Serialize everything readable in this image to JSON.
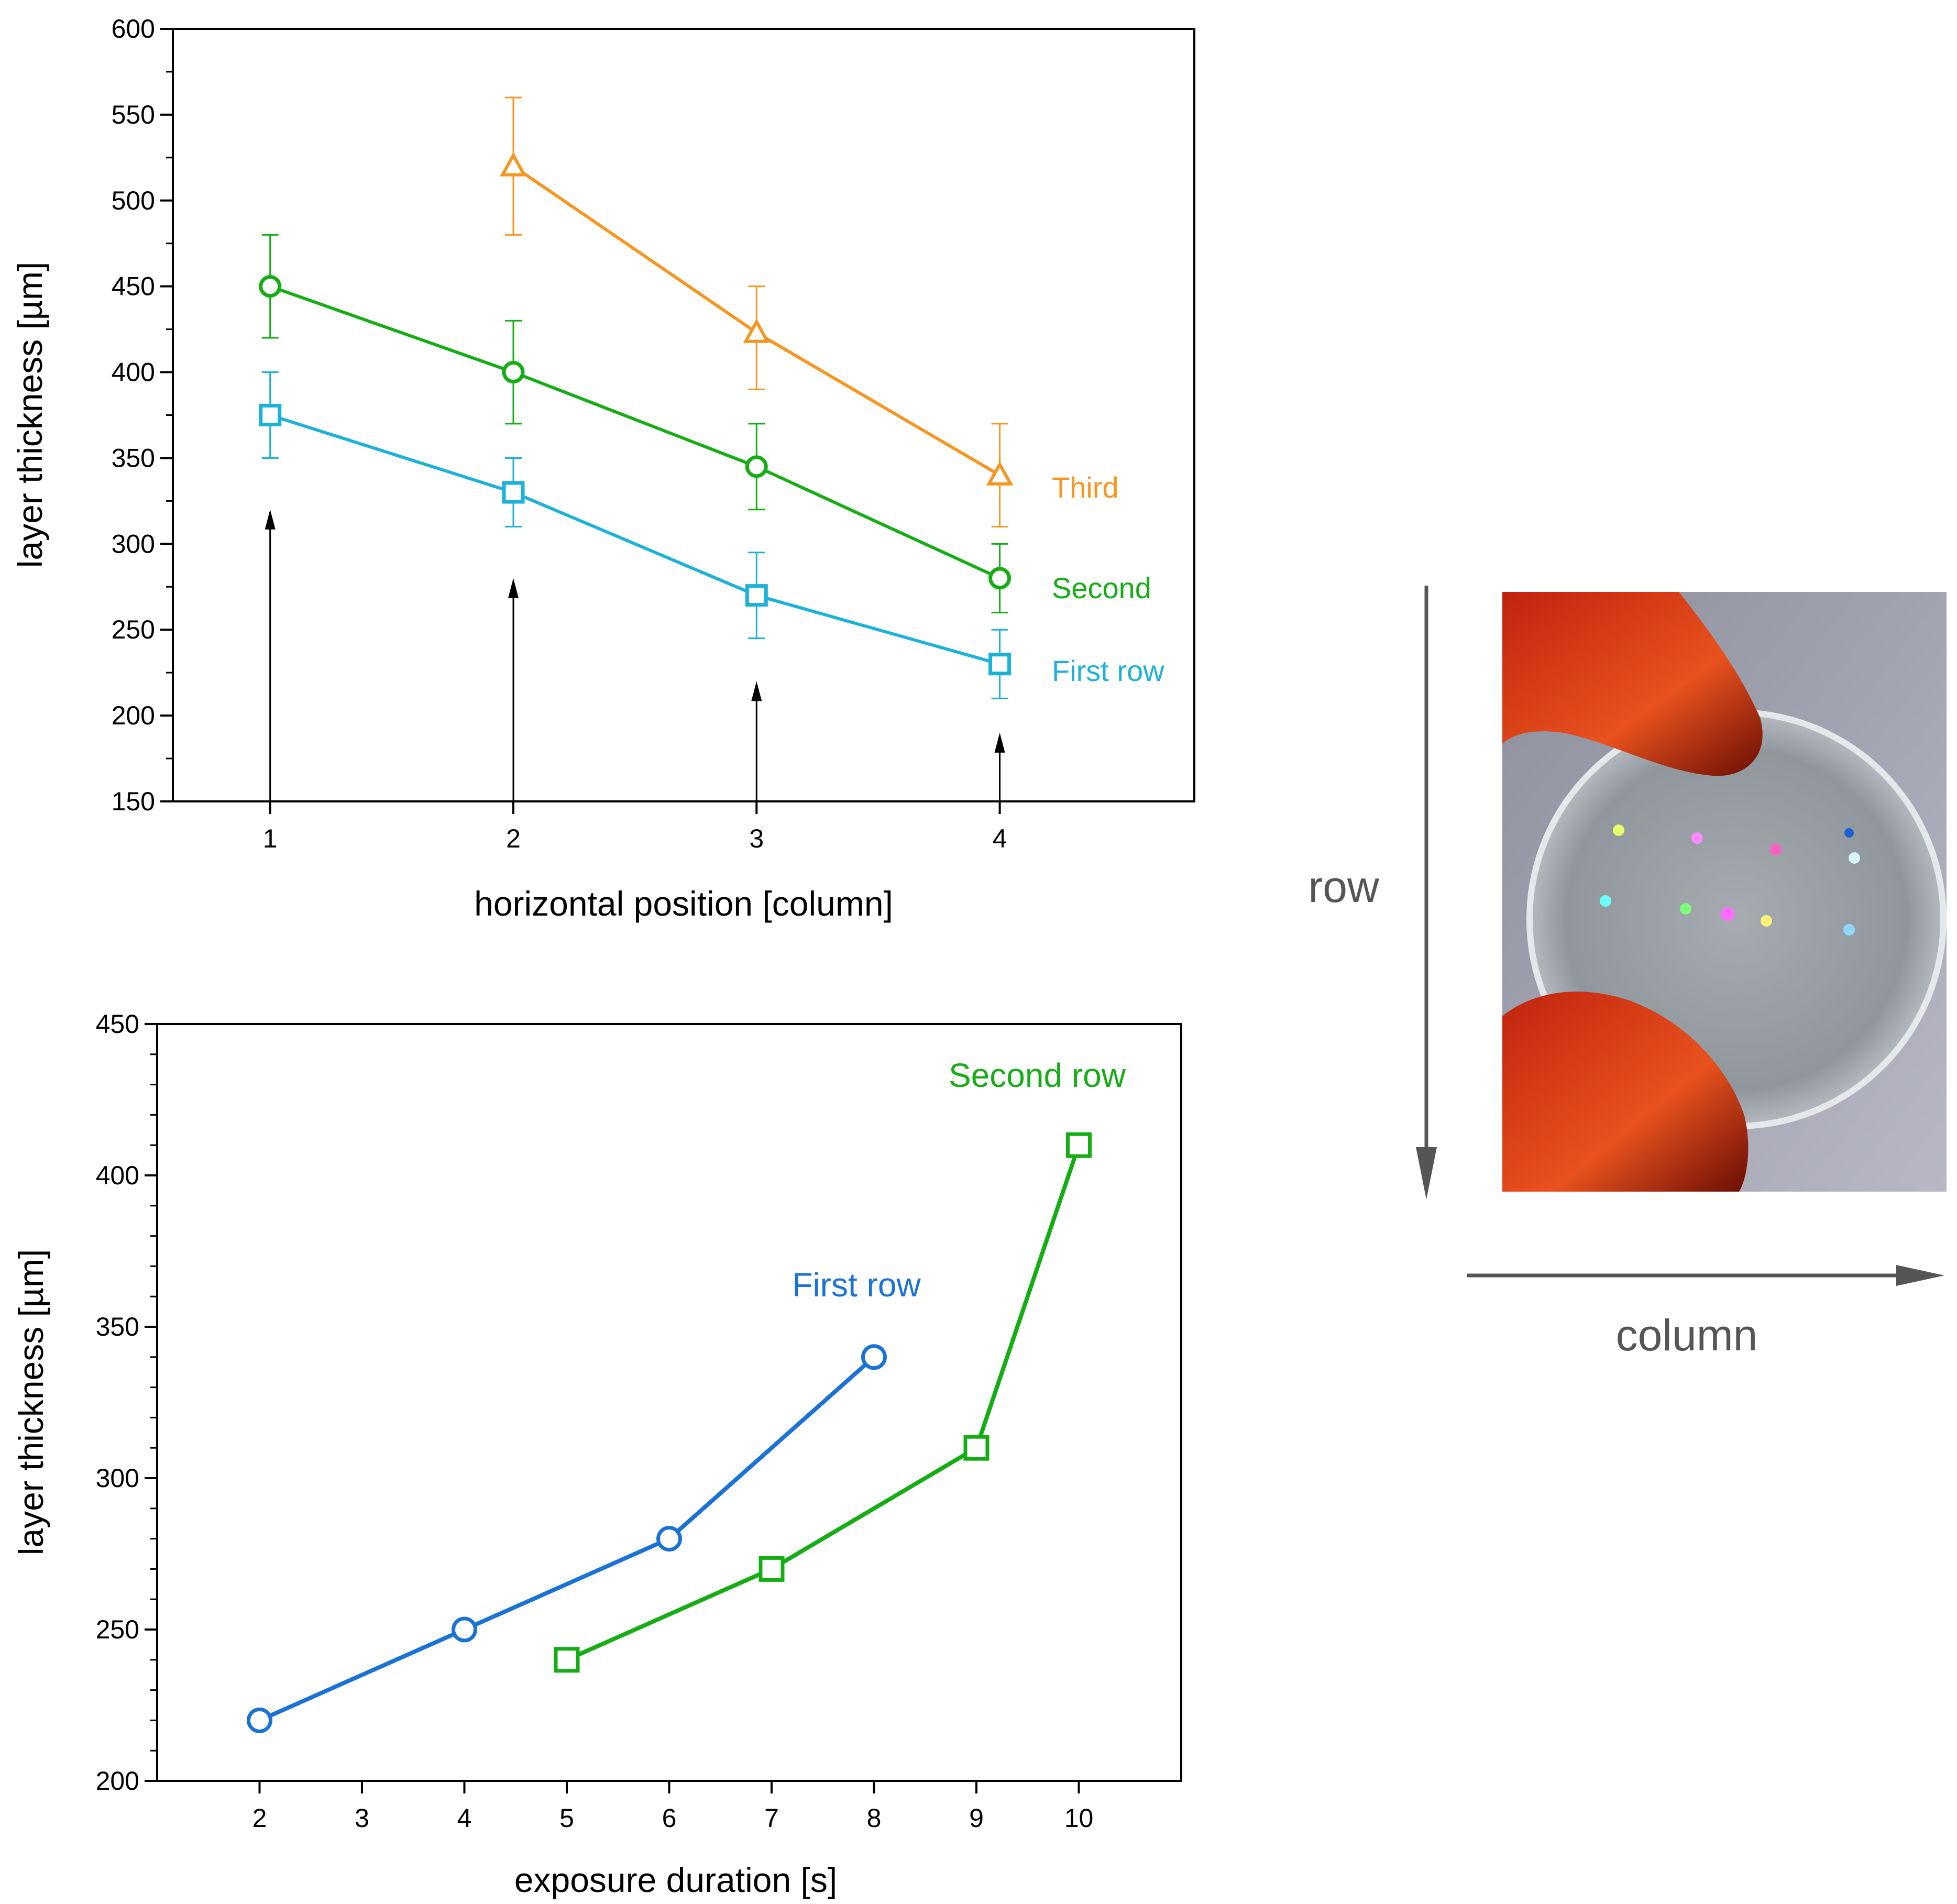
{
  "colors": {
    "first_row_top": "#1ab2d8",
    "second_top": "#14ad14",
    "third_top": "#f7951e",
    "first_row_bottom": "#1a72d6",
    "second_row_bottom": "#14ad14",
    "arrow": "#000000",
    "photo_arrow": "#555555"
  },
  "chart_data": [
    {
      "type": "line",
      "xlabel": "horizontal position [column]",
      "ylabel": "layer thickness [µm]",
      "xlim": [
        0.6,
        4.8
      ],
      "ylim": [
        150,
        600
      ],
      "xticks": [
        1,
        2,
        3,
        4
      ],
      "yticks": [
        150,
        200,
        250,
        300,
        350,
        400,
        450,
        500,
        550,
        600
      ],
      "legend_placement": "right",
      "series": [
        {
          "name": "First row",
          "marker": "square",
          "color_key": "first_row_top",
          "x": [
            1,
            2,
            3,
            4
          ],
          "y": [
            375,
            330,
            270,
            230
          ],
          "err_low": [
            350,
            310,
            245,
            210
          ],
          "err_high": [
            400,
            350,
            295,
            250
          ]
        },
        {
          "name": "Second",
          "marker": "circle",
          "color_key": "second_top",
          "x": [
            1,
            2,
            3,
            4
          ],
          "y": [
            450,
            400,
            345,
            280
          ],
          "err_low": [
            420,
            370,
            320,
            260
          ],
          "err_high": [
            480,
            430,
            370,
            300
          ]
        },
        {
          "name": "Third",
          "marker": "triangle",
          "color_key": "third_top",
          "x": [
            2,
            3,
            4
          ],
          "y": [
            520,
            423,
            340
          ],
          "err_low": [
            480,
            390,
            310
          ],
          "err_high": [
            560,
            450,
            370
          ]
        }
      ],
      "annotations": [
        {
          "type": "arrow",
          "x": 1,
          "from": 150,
          "to": 320
        },
        {
          "type": "arrow",
          "x": 2,
          "from": 150,
          "to": 280
        },
        {
          "type": "arrow",
          "x": 3,
          "from": 150,
          "to": 220
        },
        {
          "type": "arrow",
          "x": 4,
          "from": 150,
          "to": 190
        }
      ]
    },
    {
      "type": "line",
      "xlabel": "exposure duration [s]",
      "ylabel": "layer thickness [µm]",
      "xlim": [
        1,
        11
      ],
      "ylim": [
        200,
        450
      ],
      "xticks": [
        2,
        3,
        4,
        5,
        6,
        7,
        8,
        9,
        10
      ],
      "yticks": [
        200,
        250,
        300,
        350,
        400,
        450
      ],
      "legend_placement": "inline",
      "series": [
        {
          "name": "First row",
          "marker": "circle",
          "color_key": "first_row_bottom",
          "x": [
            2,
            4,
            6,
            8
          ],
          "y": [
            220,
            250,
            280,
            340
          ],
          "label_at": {
            "x": 7.7,
            "y": 362
          }
        },
        {
          "name": "Second row",
          "marker": "square",
          "color_key": "second_row_bottom",
          "x": [
            5,
            7,
            9,
            10
          ],
          "y": [
            240,
            270,
            310,
            410
          ],
          "label_at": {
            "x": 9.6,
            "y": 431
          }
        }
      ]
    }
  ],
  "photo": {
    "row_label": "row",
    "column_label": "column",
    "description": "hydrogel disk held between fingers with colored dot array"
  }
}
